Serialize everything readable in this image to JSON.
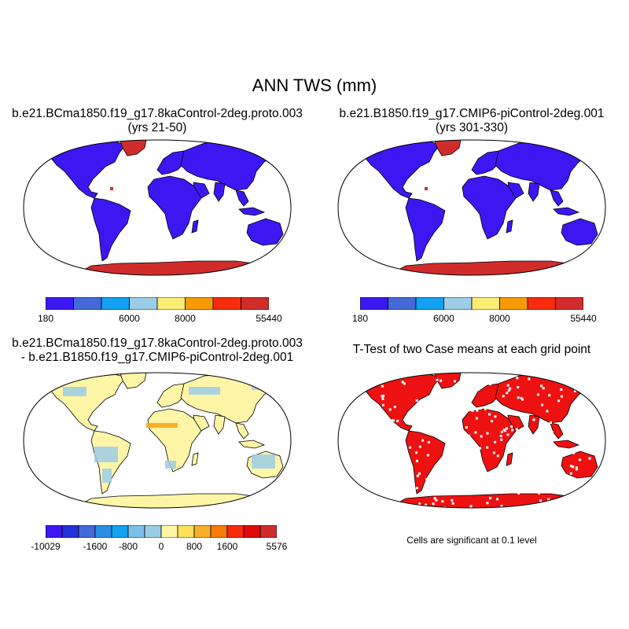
{
  "title": "ANN TWS (mm)",
  "colors": {
    "abs_palette": [
      "#3c17f2",
      "#4469d9",
      "#13a2f0",
      "#9ccde8",
      "#fbec74",
      "#f79b05",
      "#f62c0c",
      "#d12c2c"
    ],
    "diff_palette": [
      "#3c17f2",
      "#2332d7",
      "#4469d9",
      "#2c8ee0",
      "#13a2f0",
      "#7cc0e8",
      "#9ccde8",
      "#fff5a6",
      "#fbe05a",
      "#f7b02a",
      "#f77b0a",
      "#f62c0c",
      "#e00a0a",
      "#d12c2c"
    ],
    "ttest_color": "#ee1111",
    "land_abs": "#3c17f2",
    "ice_abs": "#d12c2c",
    "land_diff": "#fff5a6",
    "land_diff_blue": "#9ccde8",
    "hotspot_diff": "#f7b02a"
  },
  "panels": [
    {
      "title_line1": "b.e21.BCma1850.f19_g17.8kaControl-2deg.proto.003",
      "title_line2": "(yrs 21-50)",
      "colorbar_labels": [
        "180",
        "6000",
        "8000",
        "55440"
      ]
    },
    {
      "title_line1": "b.e21.B1850.f19_g17.CMIP6-piControl-2deg.001",
      "title_line2": "(yrs 301-330)",
      "colorbar_labels": [
        "180",
        "6000",
        "8000",
        "55440"
      ]
    },
    {
      "title_line1": "b.e21.BCma1850.f19_g17.8kaControl-2deg.proto.003",
      "title_line2": "- b.e21.B1850.f19_g17.CMIP6-piControl-2deg.001",
      "colorbar_labels": [
        "-10029",
        "-1600",
        "-800",
        "0",
        "800",
        "1600",
        "5576"
      ]
    },
    {
      "title_line1": "T-Test of two Case means at each grid point",
      "title_line2": "",
      "note": "Cells are significant at 0.1 level"
    }
  ]
}
